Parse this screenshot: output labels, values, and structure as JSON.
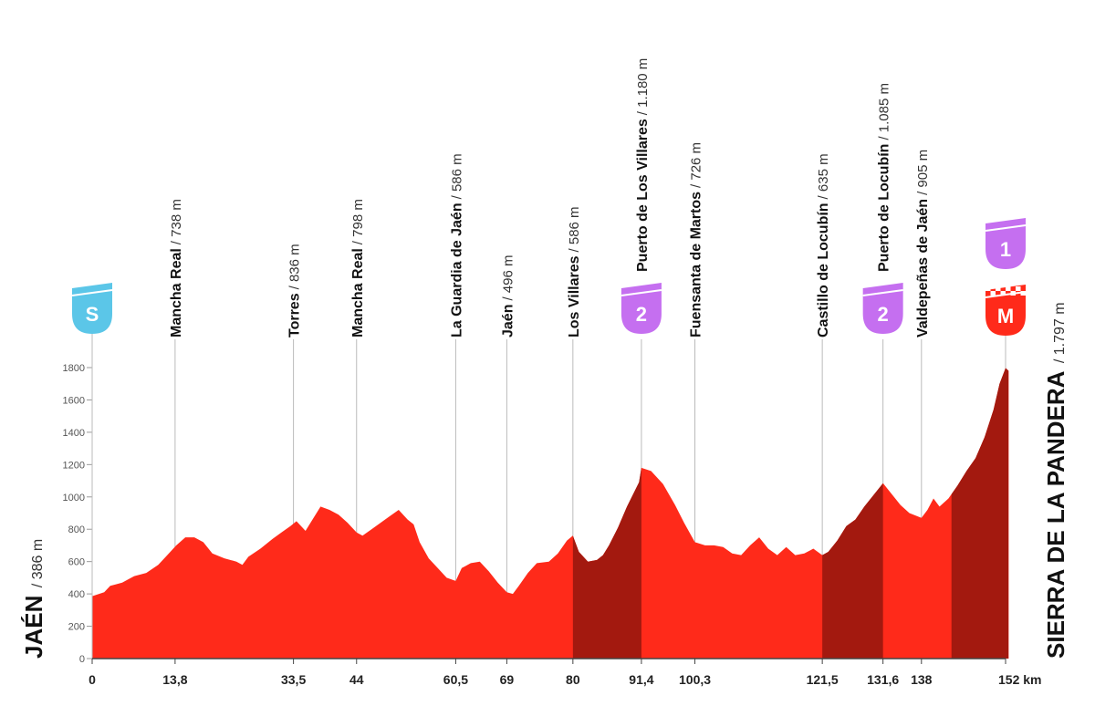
{
  "colors": {
    "profile_fill": "#ff2a1a",
    "climb_fill": "#a3190f",
    "guide_line": "#bbbbbb",
    "start_badge": "#5bc6e8",
    "category_badge": "#c56ff0",
    "finish_badge": "#ff2a1a"
  },
  "start": {
    "name": "JAÉN",
    "altitude": "/ 386 m",
    "badge": "S"
  },
  "finish": {
    "name": "SIERRA DE LA PANDERA",
    "altitude": "/ 1.797 m",
    "badge": "M",
    "category": "1"
  },
  "chart_data": {
    "type": "area",
    "x_unit": "km",
    "ylim": [
      0,
      1800
    ],
    "xlim": [
      0,
      152
    ],
    "y_ticks": [
      0,
      200,
      400,
      600,
      800,
      1000,
      1200,
      1400,
      1600,
      1800
    ],
    "x_ticks": [
      {
        "km": 0,
        "label": "0"
      },
      {
        "km": 13.8,
        "label": "13,8"
      },
      {
        "km": 33.5,
        "label": "33,5"
      },
      {
        "km": 44,
        "label": "44"
      },
      {
        "km": 60.5,
        "label": "60,5"
      },
      {
        "km": 69,
        "label": "69"
      },
      {
        "km": 80,
        "label": "80"
      },
      {
        "km": 91.4,
        "label": "91,4"
      },
      {
        "km": 100.3,
        "label": "100,3"
      },
      {
        "km": 121.5,
        "label": "121,5"
      },
      {
        "km": 131.6,
        "label": "131,6"
      },
      {
        "km": 138,
        "label": "138"
      },
      {
        "km": 152,
        "label": "152 km"
      }
    ],
    "profile": [
      [
        0,
        386
      ],
      [
        2,
        410
      ],
      [
        3,
        450
      ],
      [
        5,
        470
      ],
      [
        7,
        510
      ],
      [
        9,
        530
      ],
      [
        11,
        580
      ],
      [
        12.5,
        640
      ],
      [
        14,
        700
      ],
      [
        15.5,
        750
      ],
      [
        17,
        750
      ],
      [
        18.5,
        720
      ],
      [
        20,
        650
      ],
      [
        22,
        620
      ],
      [
        24,
        600
      ],
      [
        25,
        580
      ],
      [
        26,
        630
      ],
      [
        28,
        680
      ],
      [
        30,
        740
      ],
      [
        31.5,
        780
      ],
      [
        33,
        820
      ],
      [
        34,
        850
      ],
      [
        35.5,
        790
      ],
      [
        37,
        880
      ],
      [
        38,
        940
      ],
      [
        39.5,
        920
      ],
      [
        41,
        890
      ],
      [
        42.5,
        840
      ],
      [
        44,
        780
      ],
      [
        45,
        760
      ],
      [
        46.5,
        800
      ],
      [
        48,
        840
      ],
      [
        49.5,
        880
      ],
      [
        51,
        920
      ],
      [
        52.5,
        860
      ],
      [
        53.5,
        830
      ],
      [
        54.5,
        720
      ],
      [
        56,
        620
      ],
      [
        57.5,
        560
      ],
      [
        59,
        500
      ],
      [
        60.5,
        480
      ],
      [
        61.5,
        560
      ],
      [
        63,
        590
      ],
      [
        64.5,
        600
      ],
      [
        66,
        540
      ],
      [
        67.5,
        470
      ],
      [
        69,
        410
      ],
      [
        70,
        400
      ],
      [
        71,
        450
      ],
      [
        72.5,
        530
      ],
      [
        74,
        590
      ],
      [
        76,
        600
      ],
      [
        77.5,
        650
      ],
      [
        79,
        730
      ],
      [
        80,
        760
      ],
      [
        81,
        660
      ],
      [
        82.5,
        600
      ],
      [
        84,
        610
      ],
      [
        85,
        640
      ],
      [
        86,
        700
      ],
      [
        87.5,
        810
      ],
      [
        89,
        940
      ],
      [
        91,
        1090
      ],
      [
        91.4,
        1180
      ],
      [
        93,
        1160
      ],
      [
        95,
        1080
      ],
      [
        97,
        950
      ],
      [
        98.5,
        840
      ],
      [
        100.3,
        720
      ],
      [
        102,
        700
      ],
      [
        103.5,
        700
      ],
      [
        105,
        690
      ],
      [
        106.5,
        650
      ],
      [
        108,
        640
      ],
      [
        109.5,
        700
      ],
      [
        111,
        750
      ],
      [
        112.5,
        680
      ],
      [
        114,
        640
      ],
      [
        115.5,
        690
      ],
      [
        117,
        640
      ],
      [
        118.5,
        650
      ],
      [
        120,
        680
      ],
      [
        121.5,
        640
      ],
      [
        122.5,
        660
      ],
      [
        124,
        730
      ],
      [
        125.5,
        820
      ],
      [
        127,
        860
      ],
      [
        128.5,
        940
      ],
      [
        130,
        1010
      ],
      [
        131.6,
        1085
      ],
      [
        133,
        1020
      ],
      [
        134.5,
        950
      ],
      [
        136,
        900
      ],
      [
        138,
        870
      ],
      [
        139,
        920
      ],
      [
        140,
        990
      ],
      [
        141,
        940
      ],
      [
        142.5,
        990
      ],
      [
        144,
        1070
      ],
      [
        145.5,
        1160
      ],
      [
        147,
        1240
      ],
      [
        148.5,
        1370
      ],
      [
        150,
        1540
      ],
      [
        151,
        1700
      ],
      [
        152,
        1797
      ],
      [
        152.5,
        1780
      ]
    ],
    "climb_segments": [
      [
        80,
        91.4
      ],
      [
        121.5,
        131.6
      ],
      [
        143,
        152.5
      ]
    ],
    "waypoints": [
      {
        "km": 13.8,
        "name": "Mancha Real",
        "altitude": "/ 738 m",
        "badge": ""
      },
      {
        "km": 33.5,
        "name": "Torres",
        "altitude": "/ 836 m",
        "badge": ""
      },
      {
        "km": 44,
        "name": "Mancha Real",
        "altitude": "/ 798 m",
        "badge": ""
      },
      {
        "km": 60.5,
        "name": "La Guardia de Jaén",
        "altitude": "/ 586 m",
        "badge": ""
      },
      {
        "km": 69,
        "name": "Jaén",
        "altitude": "/ 496 m",
        "badge": ""
      },
      {
        "km": 80,
        "name": "Los Villares",
        "altitude": "/ 586 m",
        "badge": ""
      },
      {
        "km": 91.4,
        "name": "Puerto de Los Villares",
        "altitude": "/ 1.180 m",
        "badge": "2"
      },
      {
        "km": 100.3,
        "name": "Fuensanta de Martos",
        "altitude": "/ 726 m",
        "badge": ""
      },
      {
        "km": 121.5,
        "name": "Castillo de Locubín",
        "altitude": "/ 635 m",
        "badge": ""
      },
      {
        "km": 131.6,
        "name": "Puerto de Locubín",
        "altitude": "/ 1.085 m",
        "badge": "2"
      },
      {
        "km": 138,
        "name": "Valdepeñas de Jaén",
        "altitude": "/ 905 m",
        "badge": ""
      }
    ]
  }
}
